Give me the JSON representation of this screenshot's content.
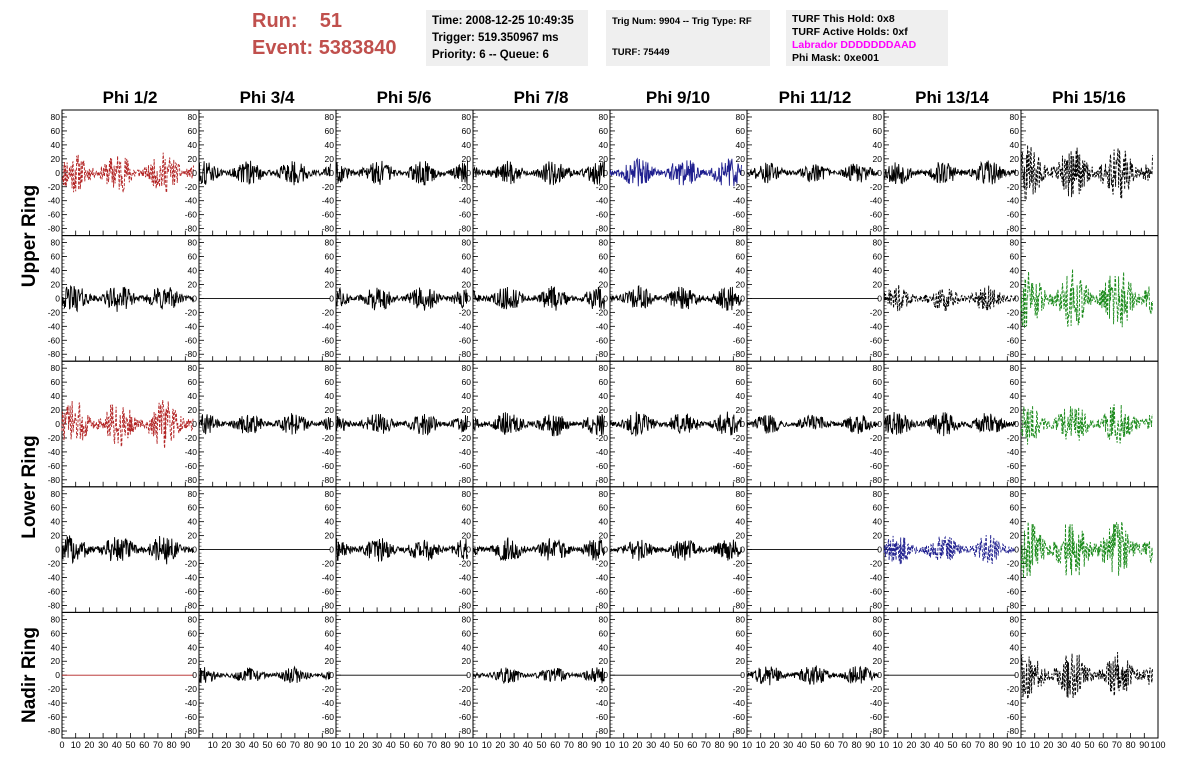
{
  "header": {
    "run_label": "Run:",
    "run_value": "51",
    "event_label": "Event:",
    "event_value": "5383840",
    "time": "Time: 2008-12-25 10:49:35",
    "trigger": "Trigger: 519.350967 ms",
    "priority": "Priority: 6 -- Queue: 6",
    "trig_num": "Trig Num: 9904 -- Trig Type: RF",
    "turf": "TURF: 75449",
    "turf_this_hold": "TURF This Hold: 0x8",
    "turf_active_holds": "TURF Active Holds: 0xf",
    "labrador": "Labrador DDDDDDDAAD",
    "phi_mask": "Phi Mask: 0xe001"
  },
  "colors": {
    "run_text": "#c0504d",
    "labrador_text": "#ff00ff",
    "trace_red": "#b22222",
    "trace_blue": "#1f1f8f",
    "trace_green": "#1a8a1a",
    "trace_black": "#000000"
  },
  "columns": [
    "Phi 1/2",
    "Phi 3/4",
    "Phi 5/6",
    "Phi 7/8",
    "Phi 9/10",
    "Phi 11/12",
    "Phi 13/14",
    "Phi 15/16"
  ],
  "rings": [
    "Upper Ring",
    "Lower Ring",
    "Nadir Ring"
  ],
  "chart_data": {
    "type": "line",
    "grid": false,
    "xlim": [
      0,
      100
    ],
    "ylim": [
      -90,
      90
    ],
    "y_ticks": [
      80,
      60,
      40,
      20,
      0,
      -20,
      -40,
      -60,
      -80
    ],
    "y_tick_labels": [
      "80",
      "60",
      "40",
      "20",
      "0",
      "-20",
      "-40",
      "-60",
      "-80"
    ],
    "x_ticks": [
      0,
      10,
      20,
      30,
      40,
      50,
      60,
      70,
      80,
      90,
      100
    ],
    "x_tick_labels_first": [
      "0",
      "10",
      "20",
      "30",
      "40",
      "50",
      "60",
      "70",
      "80",
      "90"
    ],
    "x_tick_labels_middle": [
      "10",
      "20",
      "30",
      "40",
      "50",
      "60",
      "70",
      "80",
      "90",
      "10"
    ],
    "x_tick_labels_last": [
      "10",
      "20",
      "30",
      "40",
      "50",
      "60",
      "70",
      "80",
      "90",
      "100"
    ],
    "panels_note_rows": 5,
    "panels": [
      {
        "row": 0,
        "col": 0,
        "color": "red",
        "style": "dashed",
        "amplitude": 30
      },
      {
        "row": 0,
        "col": 1,
        "color": "black",
        "style": "solid",
        "amplitude": 18
      },
      {
        "row": 0,
        "col": 2,
        "color": "black",
        "style": "solid",
        "amplitude": 18
      },
      {
        "row": 0,
        "col": 3,
        "color": "black",
        "style": "solid",
        "amplitude": 18
      },
      {
        "row": 0,
        "col": 4,
        "color": "blue",
        "style": "solid",
        "amplitude": 22
      },
      {
        "row": 0,
        "col": 5,
        "color": "black",
        "style": "solid",
        "amplitude": 15
      },
      {
        "row": 0,
        "col": 6,
        "color": "black",
        "style": "solid",
        "amplitude": 18
      },
      {
        "row": 0,
        "col": 7,
        "color": "black",
        "style": "dashed",
        "amplitude": 40
      },
      {
        "row": 1,
        "col": 0,
        "color": "black",
        "style": "solid",
        "amplitude": 20
      },
      {
        "row": 1,
        "col": 1,
        "color": "black",
        "style": "flat",
        "amplitude": 0
      },
      {
        "row": 1,
        "col": 2,
        "color": "black",
        "style": "solid",
        "amplitude": 18
      },
      {
        "row": 1,
        "col": 3,
        "color": "black",
        "style": "solid",
        "amplitude": 18
      },
      {
        "row": 1,
        "col": 4,
        "color": "black",
        "style": "solid",
        "amplitude": 18
      },
      {
        "row": 1,
        "col": 5,
        "color": "black",
        "style": "flat",
        "amplitude": 0
      },
      {
        "row": 1,
        "col": 6,
        "color": "black",
        "style": "dashed",
        "amplitude": 20
      },
      {
        "row": 1,
        "col": 7,
        "color": "green",
        "style": "dashed",
        "amplitude": 45
      },
      {
        "row": 2,
        "col": 0,
        "color": "red",
        "style": "dashed",
        "amplitude": 35
      },
      {
        "row": 2,
        "col": 1,
        "color": "black",
        "style": "solid",
        "amplitude": 16
      },
      {
        "row": 2,
        "col": 2,
        "color": "black",
        "style": "solid",
        "amplitude": 16
      },
      {
        "row": 2,
        "col": 3,
        "color": "black",
        "style": "solid",
        "amplitude": 18
      },
      {
        "row": 2,
        "col": 4,
        "color": "black",
        "style": "solid",
        "amplitude": 18
      },
      {
        "row": 2,
        "col": 5,
        "color": "black",
        "style": "solid",
        "amplitude": 14
      },
      {
        "row": 2,
        "col": 6,
        "color": "black",
        "style": "solid",
        "amplitude": 18
      },
      {
        "row": 2,
        "col": 7,
        "color": "green",
        "style": "dashed",
        "amplitude": 30
      },
      {
        "row": 3,
        "col": 0,
        "color": "black",
        "style": "solid",
        "amplitude": 22
      },
      {
        "row": 3,
        "col": 1,
        "color": "black",
        "style": "flat",
        "amplitude": 0
      },
      {
        "row": 3,
        "col": 2,
        "color": "black",
        "style": "solid",
        "amplitude": 18
      },
      {
        "row": 3,
        "col": 3,
        "color": "black",
        "style": "solid",
        "amplitude": 18
      },
      {
        "row": 3,
        "col": 4,
        "color": "black",
        "style": "solid",
        "amplitude": 16
      },
      {
        "row": 3,
        "col": 5,
        "color": "black",
        "style": "flat",
        "amplitude": 0
      },
      {
        "row": 3,
        "col": 6,
        "color": "blue",
        "style": "dashed",
        "amplitude": 22
      },
      {
        "row": 3,
        "col": 7,
        "color": "green",
        "style": "dashed",
        "amplitude": 45
      },
      {
        "row": 4,
        "col": 0,
        "color": "red",
        "style": "flat",
        "amplitude": 0
      },
      {
        "row": 4,
        "col": 1,
        "color": "black",
        "style": "solid",
        "amplitude": 12
      },
      {
        "row": 4,
        "col": 2,
        "color": "black",
        "style": "flat",
        "amplitude": 0
      },
      {
        "row": 4,
        "col": 3,
        "color": "black",
        "style": "solid",
        "amplitude": 12
      },
      {
        "row": 4,
        "col": 4,
        "color": "black",
        "style": "flat",
        "amplitude": 0
      },
      {
        "row": 4,
        "col": 5,
        "color": "black",
        "style": "solid",
        "amplitude": 15
      },
      {
        "row": 4,
        "col": 6,
        "color": "black",
        "style": "flat",
        "amplitude": 0
      },
      {
        "row": 4,
        "col": 7,
        "color": "black",
        "style": "dashed",
        "amplitude": 35
      }
    ]
  }
}
